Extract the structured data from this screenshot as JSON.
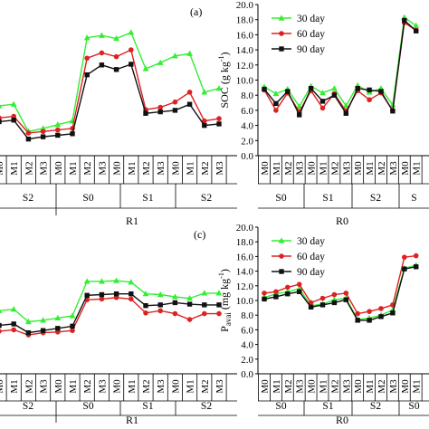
{
  "chart_data": [
    {
      "type": "line",
      "panel_tag": "(a)",
      "categories": [
        "M0",
        "M1",
        "M2",
        "M3",
        "M0",
        "M1",
        "M2",
        "M3",
        "M0",
        "M1",
        "M2",
        "M3",
        "M0",
        "M1",
        "M2",
        "M3"
      ],
      "subgroups": [
        "S2",
        "S0",
        "S1",
        "S2"
      ],
      "group": "R1",
      "ylim": [
        0,
        20
      ],
      "series": [
        {
          "name": "30 day",
          "color": "#33ee33",
          "marker": "triangle",
          "values": [
            6.6,
            6.8,
            3.2,
            3.6,
            4.1,
            4.6,
            15.6,
            15.9,
            15.5,
            16.3,
            11.5,
            12.3,
            13.2,
            13.5,
            8.4,
            8.9
          ]
        },
        {
          "name": "60 day",
          "color": "#dd2222",
          "marker": "circle",
          "values": [
            5.0,
            5.2,
            3.0,
            3.2,
            3.4,
            3.6,
            12.9,
            13.6,
            13.1,
            14.0,
            6.1,
            6.4,
            7.1,
            8.4,
            4.6,
            4.9
          ]
        },
        {
          "name": "90 day",
          "color": "#111111",
          "marker": "square",
          "values": [
            4.5,
            4.7,
            2.2,
            2.5,
            2.7,
            2.9,
            10.7,
            12.0,
            11.4,
            12.1,
            5.6,
            5.8,
            6.0,
            6.8,
            4.0,
            4.2
          ]
        }
      ]
    },
    {
      "type": "line",
      "ylabel": "SOC (g kg-1)",
      "ylabel_main": "SOC (g kg",
      "ylabel_sup": "-1",
      "ylabel_close": ")",
      "ylim": [
        0,
        20
      ],
      "yticks": [
        "0.0",
        "2.0",
        "4.0",
        "6.0",
        "8.0",
        "10.0",
        "12.0",
        "14.0",
        "16.0",
        "18.0",
        "20.0"
      ],
      "categories": [
        "M0",
        "M1",
        "M2",
        "M3",
        "M0",
        "M1",
        "M2",
        "M3",
        "M0",
        "M1",
        "M2",
        "M3",
        "M0",
        "M1"
      ],
      "subgroups": [
        "S0",
        "S1",
        "S2",
        "S"
      ],
      "group": "R0",
      "legend_position": "top-left",
      "series": [
        {
          "name": "30 day",
          "color": "#33ee33",
          "marker": "triangle",
          "values": [
            9.1,
            8.2,
            8.8,
            6.5,
            9.2,
            8.3,
            8.9,
            6.6,
            9.3,
            8.4,
            8.9,
            6.7,
            18.3,
            17.2
          ]
        },
        {
          "name": "60 day",
          "color": "#dd2222",
          "marker": "circle",
          "values": [
            8.7,
            6.0,
            8.3,
            5.8,
            8.6,
            6.3,
            8.2,
            5.9,
            8.6,
            7.4,
            8.3,
            6.0,
            17.6,
            16.6
          ]
        },
        {
          "name": "90 day",
          "color": "#111111",
          "marker": "square",
          "values": [
            8.8,
            6.9,
            8.5,
            5.4,
            8.9,
            7.2,
            8.0,
            5.6,
            8.9,
            8.7,
            8.5,
            5.9,
            17.9,
            16.5
          ]
        }
      ]
    },
    {
      "type": "line",
      "panel_tag": "(c)",
      "categories": [
        "M0",
        "M1",
        "M2",
        "M3",
        "M0",
        "M1",
        "M2",
        "M3",
        "M0",
        "M1",
        "M2",
        "M3",
        "M0",
        "M1",
        "M2",
        "M3"
      ],
      "subgroups": [
        "S2",
        "S0",
        "S1",
        "S2"
      ],
      "group": "R1",
      "ylim": [
        0,
        20
      ],
      "series": [
        {
          "name": "30 day",
          "color": "#33ee33",
          "marker": "triangle",
          "values": [
            8.6,
            8.8,
            7.1,
            7.3,
            7.6,
            7.9,
            12.6,
            12.6,
            12.7,
            12.5,
            10.9,
            10.8,
            10.5,
            10.3,
            11.0,
            11.0
          ]
        },
        {
          "name": "60 day",
          "color": "#dd2222",
          "marker": "circle",
          "values": [
            5.8,
            6.0,
            5.3,
            5.6,
            5.7,
            5.9,
            10.1,
            10.2,
            10.4,
            10.2,
            8.3,
            8.6,
            8.2,
            7.4,
            8.2,
            8.2
          ]
        },
        {
          "name": "90 day",
          "color": "#111111",
          "marker": "square",
          "values": [
            6.6,
            6.8,
            5.6,
            5.9,
            6.2,
            6.5,
            10.7,
            10.8,
            10.9,
            10.9,
            9.3,
            9.4,
            9.7,
            9.5,
            9.4,
            9.4
          ]
        }
      ]
    },
    {
      "type": "line",
      "ylabel": "Pavai (mg kg-1)",
      "ylabel_main": "P",
      "ylabel_sub": "avai",
      "ylabel_rest": " (mg kg",
      "ylabel_sup": "-1",
      "ylabel_close": ")",
      "ylim": [
        0,
        20
      ],
      "yticks": [
        "0.0",
        "2.0",
        "4.0",
        "6.0",
        "8.0",
        "10.0",
        "12.0",
        "14.0",
        "16.0",
        "18.0",
        "20.0"
      ],
      "categories": [
        "M0",
        "M1",
        "M2",
        "M3",
        "M0",
        "M1",
        "M2",
        "M3",
        "M0",
        "M1",
        "M2",
        "M3",
        "M0",
        "M1"
      ],
      "subgroups": [
        "S0",
        "S1",
        "S2",
        "S0"
      ],
      "group": "R0",
      "legend_position": "top-left",
      "series": [
        {
          "name": "30 day",
          "color": "#33ee33",
          "marker": "triangle",
          "values": [
            10.4,
            10.9,
            11.2,
            11.6,
            9.3,
            9.5,
            10.1,
            10.3,
            7.4,
            7.6,
            8.0,
            8.7,
            14.4,
            14.8
          ]
        },
        {
          "name": "60 day",
          "color": "#dd2222",
          "marker": "circle",
          "values": [
            11.0,
            11.2,
            11.8,
            12.2,
            9.7,
            10.3,
            10.8,
            11.0,
            8.2,
            8.5,
            8.9,
            9.4,
            15.9,
            16.1
          ]
        },
        {
          "name": "90 day",
          "color": "#111111",
          "marker": "square",
          "values": [
            10.2,
            10.5,
            10.9,
            11.2,
            9.1,
            9.4,
            9.7,
            10.1,
            7.3,
            7.3,
            7.8,
            8.3,
            14.3,
            14.6
          ]
        }
      ]
    }
  ]
}
